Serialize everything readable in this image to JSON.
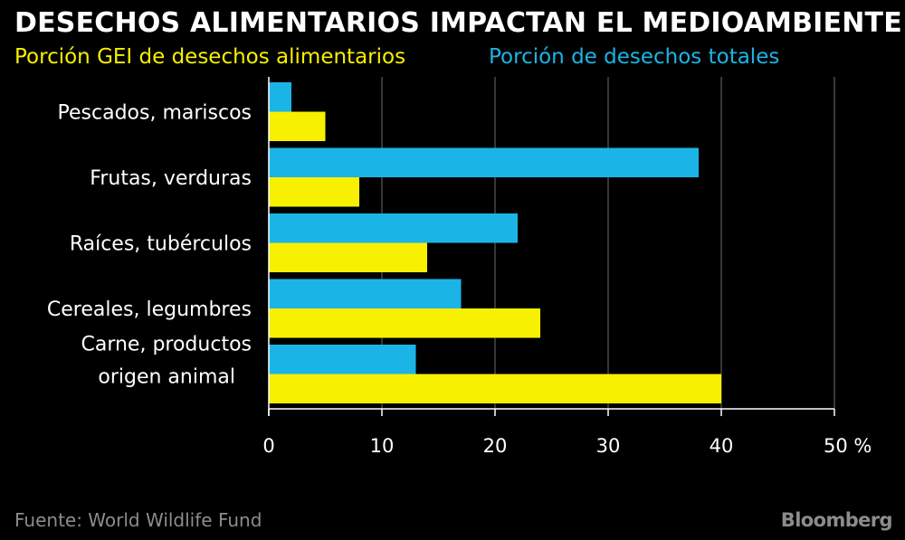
{
  "title": "DESECHOS ALIMENTARIOS IMPACTAN EL MEDIOAMBIENTE",
  "legend": {
    "yellow": "Porción GEI de desechos alimentarios",
    "blue": "Porción de desechos totales"
  },
  "source": "Fuente: World Wildlife Fund",
  "logo": "Bloomberg",
  "colors": {
    "background": "#000000",
    "yellow": "#f7f000",
    "blue": "#1ab5e6",
    "grid": "#6e6e6e",
    "muted": "#8c8c8c"
  },
  "chart_data": {
    "type": "bar",
    "orientation": "horizontal",
    "categories": [
      [
        "Pescados, mariscos"
      ],
      [
        "Frutas, verduras"
      ],
      [
        "Raíces, tubérculos"
      ],
      [
        "Cereales, legumbres"
      ],
      [
        "Carne, productos",
        "origen animal"
      ]
    ],
    "series": [
      {
        "name": "Porción de desechos totales",
        "color": "#1ab5e6",
        "values": [
          2,
          38,
          22,
          17,
          13
        ]
      },
      {
        "name": "Porción GEI de desechos alimentarios",
        "color": "#f7f000",
        "values": [
          5,
          8,
          14,
          24,
          40
        ]
      }
    ],
    "xlim": [
      0,
      50
    ],
    "xticks": [
      0,
      10,
      20,
      30,
      40,
      50
    ],
    "xtick_labels": [
      "0",
      "10",
      "20",
      "30",
      "40",
      "50 %"
    ],
    "grid": "vertical",
    "legend_position": "top"
  }
}
